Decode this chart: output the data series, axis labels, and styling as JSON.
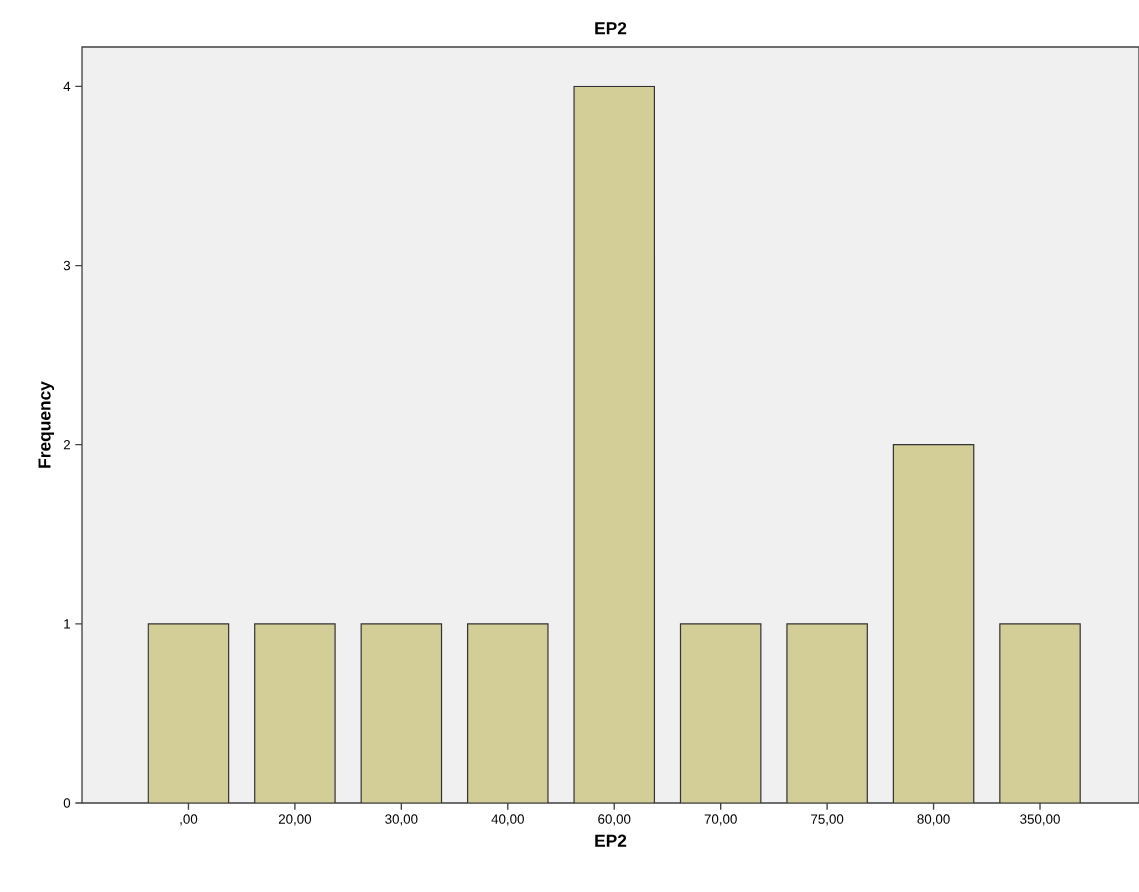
{
  "chart_data": {
    "type": "bar",
    "title": "EP2",
    "xlabel": "EP2",
    "ylabel": "Frequency",
    "categories": [
      ",00",
      "20,00",
      "30,00",
      "40,00",
      "60,00",
      "70,00",
      "75,00",
      "80,00",
      "350,00"
    ],
    "values": [
      1,
      1,
      1,
      1,
      4,
      1,
      1,
      2,
      1
    ],
    "color": "#d3ce97",
    "ylim": [
      0,
      4.22
    ],
    "yticks": [
      0,
      1,
      2,
      3,
      4
    ],
    "grid": false
  }
}
